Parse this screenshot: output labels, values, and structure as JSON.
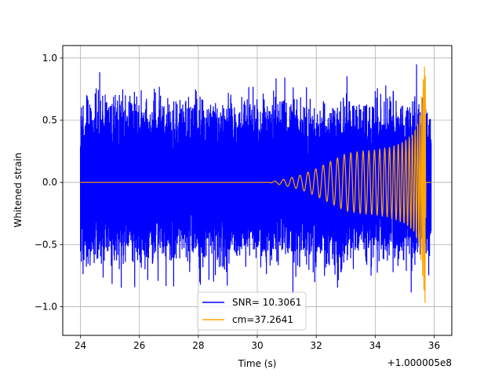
{
  "chart_data": {
    "type": "line",
    "title": "",
    "xlabel": "Time (s)",
    "ylabel": "Whitened strain",
    "x_offset_label": "+1.000005e8",
    "xlim": [
      23.4,
      36.6
    ],
    "ylim": [
      -1.23,
      1.1
    ],
    "xticks": [
      24,
      26,
      28,
      30,
      32,
      34,
      36
    ],
    "xtick_labels": [
      "24",
      "26",
      "28",
      "30",
      "32",
      "34",
      "36"
    ],
    "yticks": [
      -1.0,
      -0.5,
      0.0,
      0.5,
      1.0
    ],
    "ytick_labels": [
      "−1.0",
      "−0.5",
      "0.0",
      "0.5",
      "1.0"
    ],
    "grid": true,
    "legend_position": "lower-center",
    "series": [
      {
        "name": "SNR= 10.3061",
        "color": "#0000ff",
        "x_range": [
          24.0,
          35.9
        ],
        "y_range": [
          -1.07,
          1.0
        ],
        "typical_amplitude": 0.5
      },
      {
        "name": "cm=37.2641",
        "color": "#ffa500",
        "x_range": [
          24.0,
          35.9
        ],
        "envelope": {
          "x": [
            24.0,
            30.4,
            31.0,
            31.5,
            32.0,
            32.5,
            33.0,
            33.5,
            34.0,
            34.5,
            35.0,
            35.3,
            35.5,
            35.7,
            35.72,
            35.9
          ],
          "amplitude": [
            0.0,
            0.0,
            0.03,
            0.06,
            0.11,
            0.17,
            0.23,
            0.25,
            0.26,
            0.28,
            0.33,
            0.39,
            0.5,
            1.0,
            0.0,
            0.0
          ]
        }
      }
    ]
  }
}
